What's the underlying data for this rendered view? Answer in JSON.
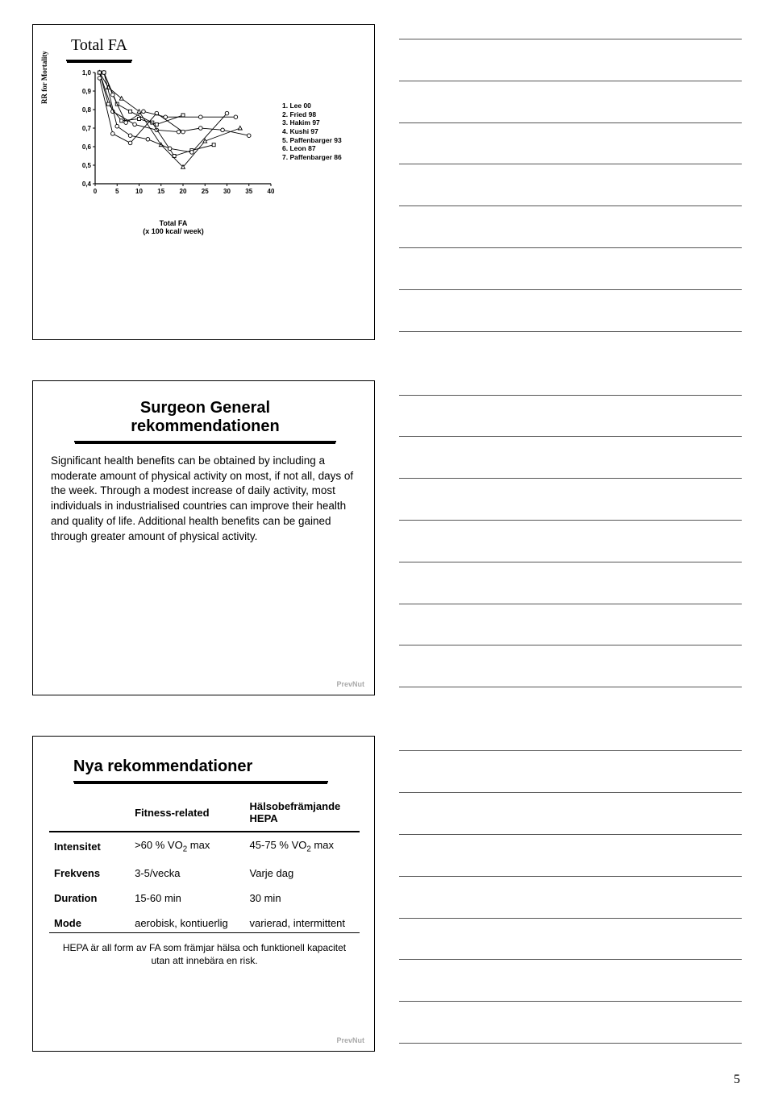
{
  "page_number": "5",
  "watermark": "PrevNut",
  "slide1": {
    "title": "Total FA",
    "y_axis_label": "RR for Mortality",
    "x_axis_label_line1": "Total FA",
    "x_axis_label_line2": "(x 100 kcal/ week)",
    "legend": [
      "1.  Lee 00",
      "2.  Fried 98",
      "3.  Hakim 97",
      "4.  Kushi 97",
      "5.  Paffenbarger 93",
      "6.  Leon 87",
      "7.  Paffenbarger 86"
    ],
    "y_ticks": [
      "0,4",
      "0,5",
      "0,6",
      "0,7",
      "0,8",
      "0,9",
      "1,0"
    ],
    "x_ticks": [
      "0",
      "5",
      "10",
      "15",
      "20",
      "25",
      "30",
      "35",
      "40"
    ],
    "y_min": 0.4,
    "y_max": 1.0,
    "x_min": 0,
    "x_max": 40,
    "series": [
      [
        [
          1,
          1.0
        ],
        [
          4,
          0.79
        ],
        [
          9,
          0.72
        ],
        [
          14,
          0.69
        ],
        [
          19,
          0.68
        ],
        [
          24,
          0.7
        ],
        [
          29,
          0.69
        ],
        [
          35,
          0.66
        ]
      ],
      [
        [
          2,
          1.0
        ],
        [
          5,
          0.83
        ],
        [
          8,
          0.79
        ],
        [
          13,
          0.73
        ],
        [
          18,
          0.55
        ],
        [
          22,
          0.58
        ],
        [
          27,
          0.61
        ]
      ],
      [
        [
          1,
          1.0
        ],
        [
          3,
          0.92
        ],
        [
          6,
          0.86
        ],
        [
          10,
          0.79
        ],
        [
          15,
          0.61
        ],
        [
          20,
          0.49
        ],
        [
          25,
          0.63
        ],
        [
          33,
          0.7
        ]
      ],
      [
        [
          1,
          1.0
        ],
        [
          3,
          0.83
        ],
        [
          6,
          0.74
        ],
        [
          10,
          0.75
        ],
        [
          14,
          0.72
        ],
        [
          20,
          0.77
        ]
      ],
      [
        [
          2,
          1.0
        ],
        [
          5,
          0.71
        ],
        [
          8,
          0.66
        ],
        [
          12,
          0.64
        ],
        [
          17,
          0.59
        ],
        [
          22,
          0.57
        ],
        [
          30,
          0.78
        ]
      ],
      [
        [
          1,
          0.97
        ],
        [
          4,
          0.67
        ],
        [
          8,
          0.62
        ],
        [
          14,
          0.78
        ],
        [
          20,
          0.68
        ]
      ],
      [
        [
          2,
          1.0
        ],
        [
          4,
          0.88
        ],
        [
          7,
          0.73
        ],
        [
          11,
          0.79
        ],
        [
          16,
          0.76
        ],
        [
          24,
          0.76
        ],
        [
          32,
          0.76
        ]
      ]
    ],
    "markers": [
      "circle",
      "square",
      "triangle",
      "square",
      "circle",
      "circle",
      "circle"
    ]
  },
  "slide2": {
    "title": "Surgeon General rekommendationen",
    "body": "Significant health benefits can be obtained by including a moderate amount of physical activity on most, if not all, days of the week. Through a modest increase of daily activity, most individuals in industrialised countries can improve their health and quality of life. Additional health benefits can be gained through greater amount of physical activity."
  },
  "slide3": {
    "title": "Nya rekommendationer",
    "col1_header": "Fitness-related",
    "col2_header_line1": "Hälsobefrämjande",
    "col2_header_line2": "HEPA",
    "rows": [
      {
        "label": "Intensitet",
        "c1": ">60 % VO₂ max",
        "c2": "45-75 % VO₂ max"
      },
      {
        "label": "Frekvens",
        "c1": "3-5/vecka",
        "c2": "Varje dag"
      },
      {
        "label": "Duration",
        "c1": "15-60 min",
        "c2": "30 min"
      },
      {
        "label": "Mode",
        "c1": "aerobisk, kontiuerlig",
        "c2": "varierad, intermittent"
      }
    ],
    "footnote": "HEPA  är all form av FA som främjar hälsa och funktionell kapacitet utan att innebära en risk."
  }
}
